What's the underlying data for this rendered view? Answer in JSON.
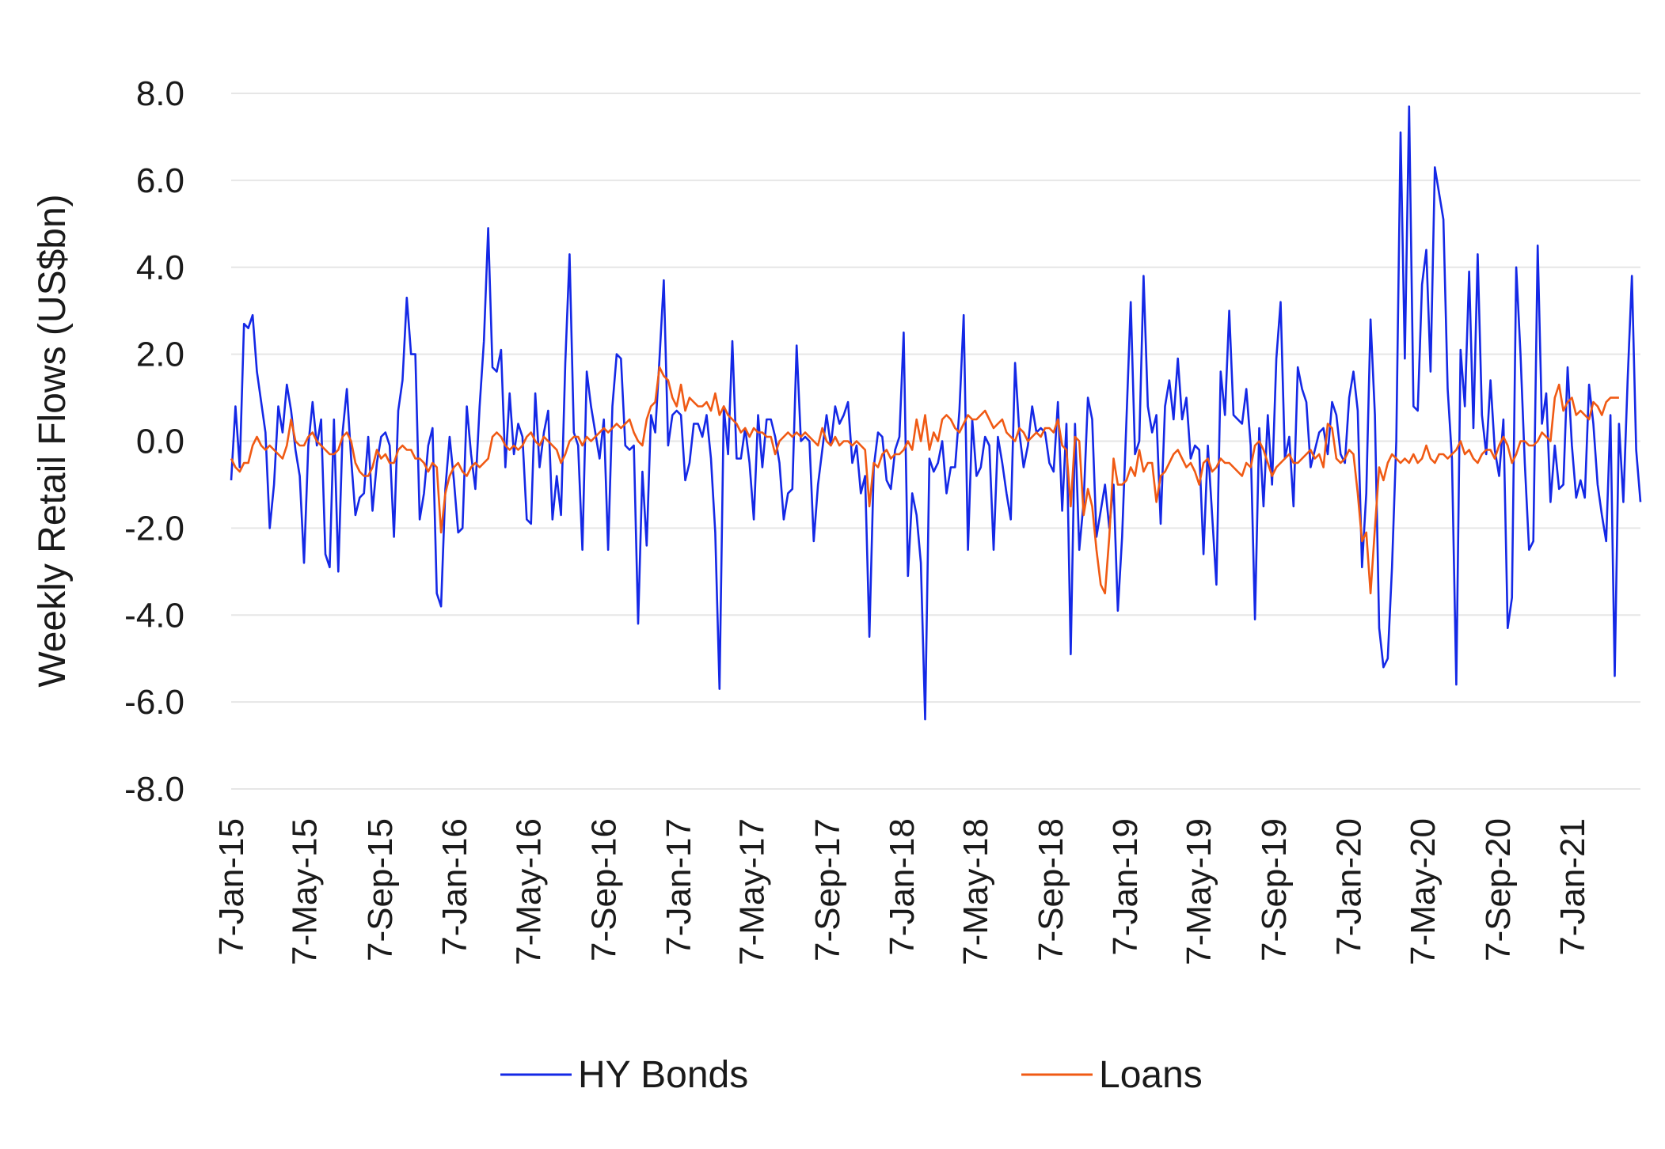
{
  "chart_data": {
    "type": "line",
    "title": "",
    "xlabel": "",
    "ylabel": "Weekly Retail Flows (US$bn)",
    "ylim": [
      -8,
      8
    ],
    "y_ticks": [
      8,
      6,
      4,
      2,
      0,
      -2,
      -4,
      -6,
      -8
    ],
    "y_tick_labels": [
      "8.0",
      "6.0",
      "4.0",
      "2.0",
      "0.0",
      "-2.0",
      "-4.0",
      "-6.0",
      "-8.0"
    ],
    "x_start": "7-Jan-15",
    "x_tick_labels": [
      "7-Jan-15",
      "7-May-15",
      "7-Sep-15",
      "7-Jan-16",
      "7-May-16",
      "7-Sep-16",
      "7-Jan-17",
      "7-May-17",
      "7-Sep-17",
      "7-Jan-18",
      "7-May-18",
      "7-Sep-18",
      "7-Jan-19",
      "7-May-19",
      "7-Sep-19",
      "7-Jan-20",
      "7-May-20",
      "7-Sep-20",
      "7-Jan-21"
    ],
    "grid": true,
    "legend_position": "bottom",
    "series": [
      {
        "name": "HY Bonds",
        "color": "#1428e6",
        "values": [
          -0.9,
          0.8,
          -0.6,
          2.7,
          2.6,
          2.9,
          1.6,
          0.9,
          0.2,
          -2.0,
          -1.0,
          0.8,
          0.2,
          1.3,
          0.7,
          -0.2,
          -0.8,
          -2.8,
          -0.1,
          0.9,
          -0.1,
          0.5,
          -2.6,
          -2.9,
          0.5,
          -3.0,
          0.2,
          1.2,
          -0.4,
          -1.7,
          -1.3,
          -1.2,
          0.1,
          -1.6,
          -0.5,
          0.1,
          0.2,
          -0.1,
          -2.2,
          0.7,
          1.4,
          3.3,
          2.0,
          2.0,
          -1.8,
          -1.2,
          -0.1,
          0.3,
          -3.5,
          -3.8,
          -1.1,
          0.1,
          -0.9,
          -2.1,
          -2.0,
          0.8,
          -0.3,
          -1.1,
          0.8,
          2.3,
          4.9,
          1.7,
          1.6,
          2.1,
          -0.6,
          1.1,
          -0.3,
          0.4,
          0.1,
          -1.8,
          -1.9,
          1.1,
          -0.6,
          0.2,
          0.7,
          -1.8,
          -0.8,
          -1.7,
          1.8,
          4.3,
          0.2,
          -0.1,
          -2.5,
          1.6,
          0.8,
          0.2,
          -0.4,
          0.5,
          -2.5,
          0.8,
          2.0,
          1.9,
          -0.1,
          -0.2,
          -0.1,
          -4.2,
          -0.7,
          -2.4,
          0.6,
          0.2,
          1.9,
          3.7,
          -0.1,
          0.6,
          0.7,
          0.6,
          -0.9,
          -0.5,
          0.4,
          0.4,
          0.1,
          0.6,
          -0.4,
          -2.1,
          -5.7,
          0.8,
          -0.3,
          2.3,
          -0.4,
          -0.4,
          0.3,
          -0.5,
          -1.8,
          0.6,
          -0.6,
          0.5,
          0.5,
          0.1,
          -0.5,
          -1.8,
          -1.2,
          -1.1,
          2.2,
          0.0,
          0.1,
          0.0,
          -2.3,
          -1.0,
          -0.2,
          0.6,
          -0.1,
          0.8,
          0.4,
          0.6,
          0.9,
          -0.5,
          -0.1,
          -1.2,
          -0.8,
          -4.5,
          -0.6,
          0.2,
          0.1,
          -0.9,
          -1.1,
          -0.2,
          0.1,
          2.5,
          -3.1,
          -1.2,
          -1.7,
          -2.8,
          -6.4,
          -0.4,
          -0.7,
          -0.5,
          0.0,
          -1.2,
          -0.6,
          -0.6,
          0.7,
          2.9,
          -2.5,
          0.5,
          -0.8,
          -0.6,
          0.1,
          -0.1,
          -2.5,
          0.1,
          -0.5,
          -1.2,
          -1.8,
          1.8,
          0.2,
          -0.6,
          -0.1,
          0.8,
          0.2,
          0.3,
          0.2,
          -0.5,
          -0.7,
          0.9,
          -1.6,
          0.4,
          -4.9,
          0.4,
          -2.5,
          -1.4,
          1.0,
          0.5,
          -2.2,
          -1.6,
          -1.0,
          -2.0,
          -1.0,
          -3.9,
          -2.2,
          0.5,
          3.2,
          -0.3,
          0.0,
          3.8,
          0.8,
          0.2,
          0.6,
          -1.9,
          0.8,
          1.4,
          0.5,
          1.9,
          0.5,
          1.0,
          -0.4,
          -0.1,
          -0.2,
          -2.6,
          -0.1,
          -1.7,
          -3.3,
          1.6,
          0.6,
          3.0,
          0.6,
          0.5,
          0.4,
          1.2,
          -0.1,
          -4.1,
          0.3,
          -1.5,
          0.6,
          -1.0,
          1.9,
          3.2,
          -0.4,
          0.1,
          -1.5,
          1.7,
          1.2,
          0.9,
          -0.6,
          -0.2,
          0.2,
          0.3,
          -0.3,
          0.9,
          0.6,
          -0.3,
          -0.5,
          1.0,
          1.6,
          0.7,
          -2.9,
          -1.2,
          2.8,
          0.6,
          -4.3,
          -5.2,
          -5.0,
          -2.9,
          0.0,
          7.1,
          1.9,
          7.7,
          0.8,
          0.7,
          3.6,
          4.4,
          1.6,
          6.3,
          5.7,
          5.1,
          1.2,
          -0.4,
          -5.6,
          2.1,
          0.8,
          3.9,
          0.3,
          4.3,
          0.6,
          -0.3,
          1.4,
          -0.2,
          -0.8,
          0.5,
          -4.3,
          -3.6,
          4.0,
          2.0,
          -0.5,
          -2.5,
          -2.3,
          4.5,
          0.4,
          1.1,
          -1.4,
          -0.1,
          -1.1,
          -1.0,
          1.7,
          -0.1,
          -1.3,
          -0.9,
          -1.3,
          1.3,
          0.4,
          -1.0,
          -1.7,
          -2.3,
          0.6,
          -5.4,
          0.4,
          -1.4,
          1.4,
          3.8,
          -0.2,
          -1.4
        ]
      },
      {
        "name": "Loans",
        "color": "#f05a14",
        "values": [
          -0.4,
          -0.6,
          -0.7,
          -0.5,
          -0.5,
          -0.1,
          0.1,
          -0.1,
          -0.2,
          -0.1,
          -0.2,
          -0.3,
          -0.4,
          -0.1,
          0.5,
          0.0,
          -0.1,
          -0.1,
          0.1,
          0.2,
          0.0,
          -0.1,
          -0.2,
          -0.3,
          -0.3,
          -0.2,
          0.1,
          0.2,
          0.0,
          -0.5,
          -0.7,
          -0.8,
          -0.8,
          -0.6,
          -0.2,
          -0.4,
          -0.3,
          -0.5,
          -0.5,
          -0.2,
          -0.1,
          -0.2,
          -0.2,
          -0.4,
          -0.4,
          -0.5,
          -0.7,
          -0.5,
          -0.6,
          -2.1,
          -1.2,
          -0.8,
          -0.6,
          -0.5,
          -0.7,
          -0.8,
          -0.6,
          -0.5,
          -0.6,
          -0.5,
          -0.4,
          0.1,
          0.2,
          0.1,
          -0.1,
          -0.2,
          -0.1,
          -0.2,
          -0.1,
          0.1,
          0.2,
          0.0,
          -0.1,
          0.1,
          0.0,
          -0.1,
          -0.2,
          -0.5,
          -0.3,
          0.0,
          0.1,
          0.1,
          -0.1,
          0.1,
          0.0,
          0.1,
          0.2,
          0.3,
          0.2,
          0.3,
          0.4,
          0.3,
          0.4,
          0.5,
          0.2,
          0.0,
          -0.1,
          0.5,
          0.8,
          0.9,
          1.7,
          1.5,
          1.4,
          1.0,
          0.8,
          1.3,
          0.7,
          1.0,
          0.9,
          0.8,
          0.8,
          0.9,
          0.7,
          1.1,
          0.6,
          0.8,
          0.6,
          0.5,
          0.4,
          0.2,
          0.3,
          0.1,
          0.3,
          0.2,
          0.2,
          0.1,
          0.1,
          -0.3,
          0.0,
          0.1,
          0.2,
          0.1,
          0.2,
          0.1,
          0.2,
          0.1,
          0.0,
          -0.1,
          0.3,
          0.0,
          -0.1,
          0.1,
          -0.1,
          0.0,
          0.0,
          -0.1,
          0.0,
          -0.1,
          -0.2,
          -1.5,
          -0.5,
          -0.6,
          -0.3,
          -0.2,
          -0.4,
          -0.3,
          -0.3,
          -0.2,
          0.0,
          -0.2,
          0.5,
          0.0,
          0.6,
          -0.2,
          0.2,
          0.0,
          0.5,
          0.6,
          0.5,
          0.3,
          0.2,
          0.4,
          0.6,
          0.5,
          0.5,
          0.6,
          0.7,
          0.5,
          0.3,
          0.4,
          0.5,
          0.2,
          0.1,
          0.0,
          0.3,
          0.2,
          0.0,
          0.1,
          0.2,
          0.1,
          0.3,
          0.3,
          0.2,
          0.5,
          -0.1,
          -0.2,
          -1.5,
          0.1,
          0.0,
          -1.7,
          -1.1,
          -1.5,
          -2.5,
          -3.3,
          -3.5,
          -2.2,
          -0.4,
          -1.0,
          -1.0,
          -0.9,
          -0.6,
          -0.8,
          -0.2,
          -0.7,
          -0.5,
          -0.5,
          -1.4,
          -0.8,
          -0.7,
          -0.5,
          -0.3,
          -0.2,
          -0.4,
          -0.6,
          -0.5,
          -0.7,
          -1.0,
          -0.5,
          -0.4,
          -0.7,
          -0.6,
          -0.4,
          -0.5,
          -0.5,
          -0.6,
          -0.7,
          -0.8,
          -0.5,
          -0.6,
          -0.1,
          0.0,
          -0.2,
          -0.5,
          -0.8,
          -0.6,
          -0.5,
          -0.4,
          -0.3,
          -0.5,
          -0.5,
          -0.4,
          -0.3,
          -0.2,
          -0.4,
          -0.3,
          -0.6,
          0.4,
          0.3,
          -0.4,
          -0.5,
          -0.4,
          -0.2,
          -0.3,
          -1.2,
          -2.3,
          -2.1,
          -3.5,
          -2.0,
          -0.6,
          -0.9,
          -0.5,
          -0.3,
          -0.4,
          -0.5,
          -0.4,
          -0.5,
          -0.3,
          -0.5,
          -0.4,
          -0.1,
          -0.4,
          -0.5,
          -0.3,
          -0.3,
          -0.4,
          -0.3,
          -0.2,
          0.0,
          -0.3,
          -0.2,
          -0.4,
          -0.5,
          -0.3,
          -0.2,
          -0.2,
          -0.4,
          -0.1,
          0.1,
          -0.1,
          -0.5,
          -0.3,
          0.0,
          0.0,
          -0.1,
          -0.1,
          0.0,
          0.2,
          0.1,
          0.0,
          1.0,
          1.3,
          0.7,
          0.9,
          1.0,
          0.6,
          0.7,
          0.6,
          0.5,
          0.9,
          0.8,
          0.6,
          0.9,
          1.0,
          1.0,
          1.0
        ]
      }
    ]
  }
}
